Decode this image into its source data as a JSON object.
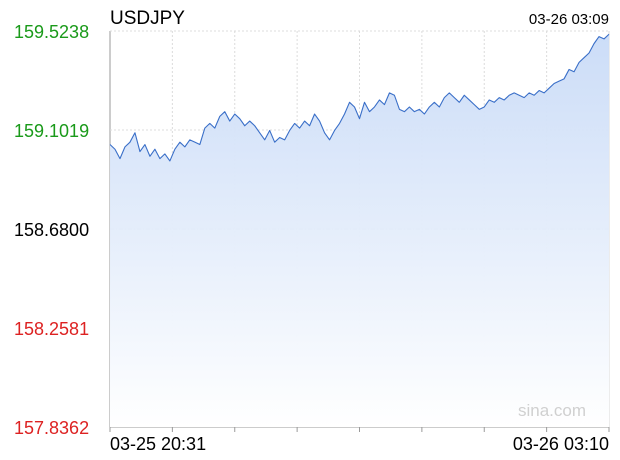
{
  "chart_data": {
    "type": "area",
    "title": "USDJPY",
    "timestamp": "03-26 03:09",
    "watermark": "sina.com",
    "x_start_label": "03-25 20:31",
    "x_end_label": "03-26 03:10",
    "ylim": [
      157.8362,
      159.5238
    ],
    "y_ticks": [
      {
        "label": "159.5238",
        "value": 159.5238,
        "color": "#1a9a1a"
      },
      {
        "label": "159.1019",
        "value": 159.1019,
        "color": "#1a9a1a"
      },
      {
        "label": "158.6800",
        "value": 158.68,
        "color": "#000000"
      },
      {
        "label": "158.2581",
        "value": 158.2581,
        "color": "#dd2222"
      },
      {
        "label": "157.8362",
        "value": 157.8362,
        "color": "#dd2222"
      }
    ],
    "reference_value": 158.68,
    "x_domain": [
      0,
      100
    ],
    "grid": true,
    "line_color": "#3a6fc8",
    "fill_color": "#cfdff8",
    "series": [
      {
        "values": [
          [
            0,
            159.04
          ],
          [
            1,
            159.02
          ],
          [
            2,
            158.98
          ],
          [
            3,
            159.03
          ],
          [
            4,
            159.05
          ],
          [
            5,
            159.09
          ],
          [
            6,
            159.01
          ],
          [
            7,
            159.04
          ],
          [
            8,
            158.99
          ],
          [
            9,
            159.02
          ],
          [
            10,
            158.98
          ],
          [
            11,
            159.0
          ],
          [
            12,
            158.97
          ],
          [
            13,
            159.02
          ],
          [
            14,
            159.05
          ],
          [
            15,
            159.03
          ],
          [
            16,
            159.06
          ],
          [
            17,
            159.05
          ],
          [
            18,
            159.04
          ],
          [
            19,
            159.11
          ],
          [
            20,
            159.13
          ],
          [
            21,
            159.11
          ],
          [
            22,
            159.16
          ],
          [
            23,
            159.18
          ],
          [
            24,
            159.14
          ],
          [
            25,
            159.17
          ],
          [
            26,
            159.15
          ],
          [
            27,
            159.12
          ],
          [
            28,
            159.14
          ],
          [
            29,
            159.12
          ],
          [
            30,
            159.09
          ],
          [
            31,
            159.06
          ],
          [
            32,
            159.1
          ],
          [
            33,
            159.05
          ],
          [
            34,
            159.07
          ],
          [
            35,
            159.06
          ],
          [
            36,
            159.1
          ],
          [
            37,
            159.13
          ],
          [
            38,
            159.11
          ],
          [
            39,
            159.14
          ],
          [
            40,
            159.12
          ],
          [
            41,
            159.17
          ],
          [
            42,
            159.14
          ],
          [
            43,
            159.09
          ],
          [
            44,
            159.06
          ],
          [
            45,
            159.1
          ],
          [
            46,
            159.13
          ],
          [
            47,
            159.17
          ],
          [
            48,
            159.22
          ],
          [
            49,
            159.2
          ],
          [
            50,
            159.15
          ],
          [
            51,
            159.22
          ],
          [
            52,
            159.18
          ],
          [
            53,
            159.2
          ],
          [
            54,
            159.23
          ],
          [
            55,
            159.21
          ],
          [
            56,
            159.26
          ],
          [
            57,
            159.25
          ],
          [
            58,
            159.19
          ],
          [
            59,
            159.18
          ],
          [
            60,
            159.2
          ],
          [
            61,
            159.18
          ],
          [
            62,
            159.19
          ],
          [
            63,
            159.17
          ],
          [
            64,
            159.2
          ],
          [
            65,
            159.22
          ],
          [
            66,
            159.2
          ],
          [
            67,
            159.24
          ],
          [
            68,
            159.26
          ],
          [
            69,
            159.24
          ],
          [
            70,
            159.22
          ],
          [
            71,
            159.25
          ],
          [
            72,
            159.23
          ],
          [
            73,
            159.21
          ],
          [
            74,
            159.19
          ],
          [
            75,
            159.2
          ],
          [
            76,
            159.23
          ],
          [
            77,
            159.22
          ],
          [
            78,
            159.24
          ],
          [
            79,
            159.23
          ],
          [
            80,
            159.25
          ],
          [
            81,
            159.26
          ],
          [
            82,
            159.25
          ],
          [
            83,
            159.24
          ],
          [
            84,
            159.26
          ],
          [
            85,
            159.25
          ],
          [
            86,
            159.27
          ],
          [
            87,
            159.26
          ],
          [
            88,
            159.28
          ],
          [
            89,
            159.3
          ],
          [
            90,
            159.31
          ],
          [
            91,
            159.32
          ],
          [
            92,
            159.36
          ],
          [
            93,
            159.35
          ],
          [
            94,
            159.39
          ],
          [
            95,
            159.41
          ],
          [
            96,
            159.43
          ],
          [
            97,
            159.47
          ],
          [
            98,
            159.5
          ],
          [
            99,
            159.49
          ],
          [
            100,
            159.51
          ]
        ]
      }
    ]
  }
}
